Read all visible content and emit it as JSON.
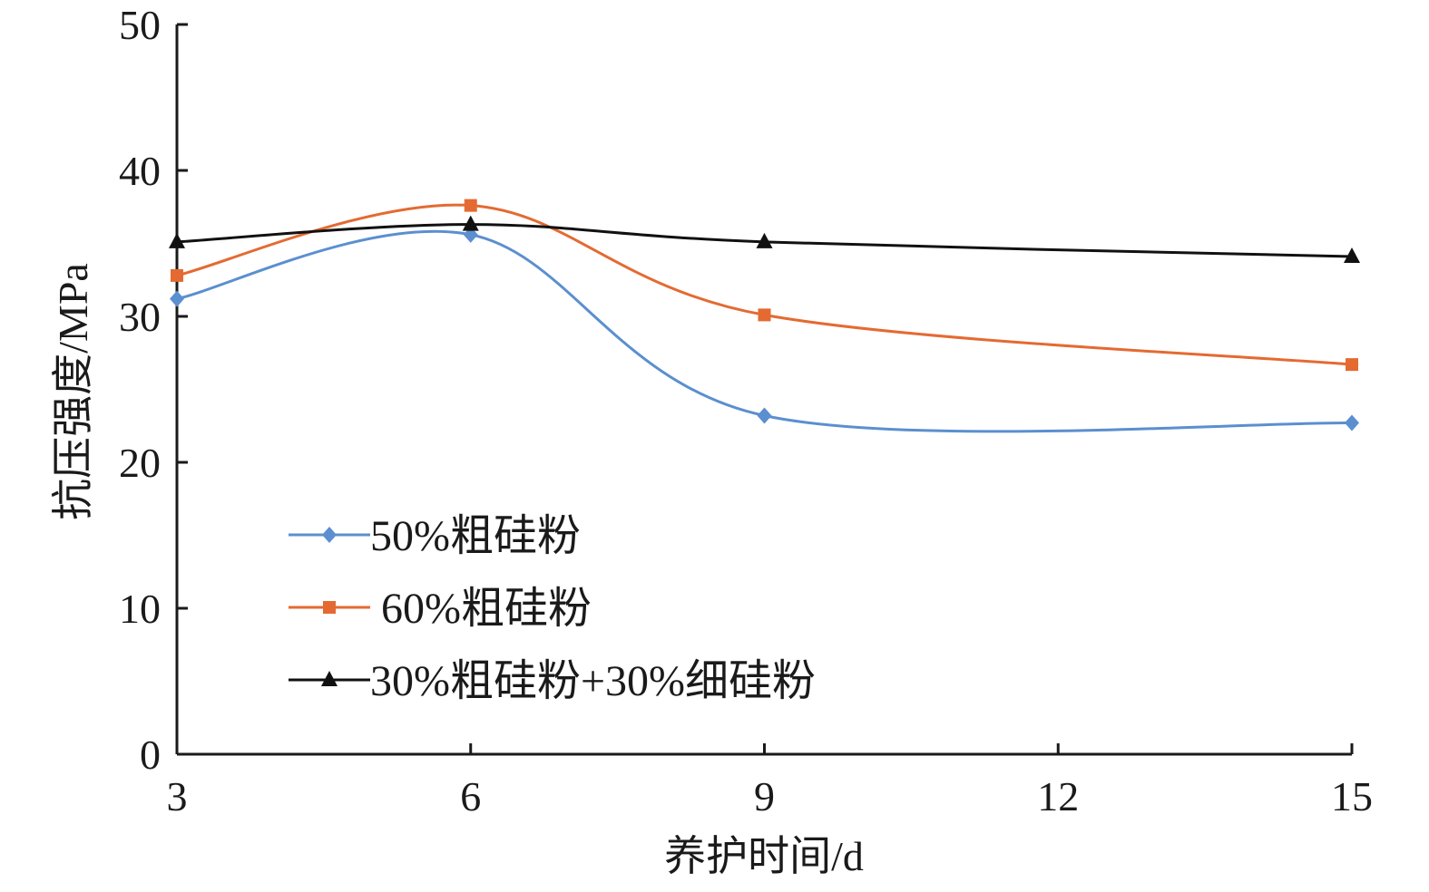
{
  "chart_data": {
    "type": "line",
    "title": "",
    "xlabel": "养护时间/d",
    "ylabel": "抗压强度/MPa",
    "x": [
      3,
      6,
      9,
      15
    ],
    "xticks": [
      3,
      6,
      9,
      12,
      15
    ],
    "yticks": [
      0,
      10,
      20,
      30,
      40,
      50
    ],
    "xlim": [
      3,
      15
    ],
    "ylim": [
      0,
      50
    ],
    "grid": false,
    "legend_position": "bottom-left",
    "smooth": true,
    "series": [
      {
        "name": "50%粗硅粉",
        "color": "#5b8fd0",
        "marker": "diamond",
        "values": [
          31.2,
          35.6,
          23.2,
          22.7
        ]
      },
      {
        "name": "60%粗硅粉",
        "color": "#e46a32",
        "marker": "square",
        "values": [
          32.8,
          37.6,
          30.1,
          26.7
        ]
      },
      {
        "name": "30%粗硅粉+30%细硅粉",
        "color": "#111111",
        "marker": "triangle",
        "values": [
          35.1,
          36.3,
          35.1,
          34.1
        ]
      }
    ]
  }
}
